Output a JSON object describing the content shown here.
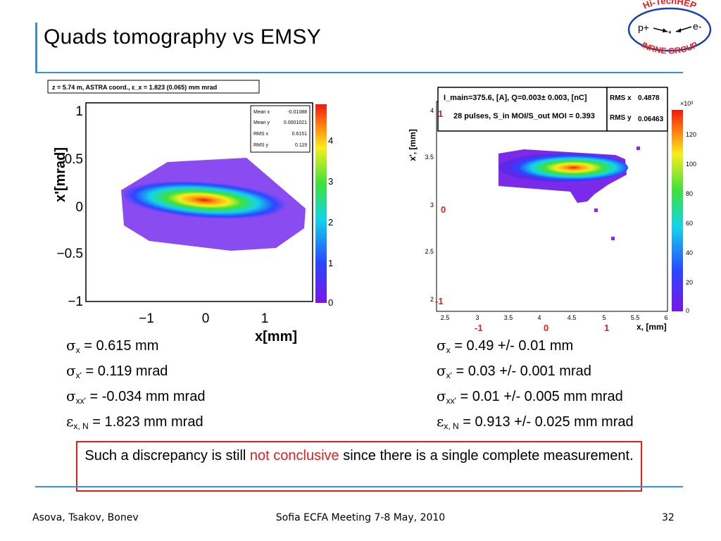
{
  "title": "Quads tomography vs EMSY",
  "logo": {
    "top_text": "Hi-TechHEP",
    "left": "p+",
    "right": "e-",
    "center": "*",
    "bottom_text": "INRNE GROUP"
  },
  "left_plot": {
    "header": "z = 5.74 m, ASTRA coord., ε_x = 1.823 (0.065) mm mrad",
    "stats": [
      {
        "label": "Mean x",
        "value": "-0.01088"
      },
      {
        "label": "Mean y",
        "value": "0.0001021"
      },
      {
        "label": "RMS x",
        "value": "0.6151"
      },
      {
        "label": "RMS y",
        "value": "0.119"
      }
    ],
    "ylabel": "x'[mrad]",
    "xlabel": "x[mm]",
    "yticks": [
      "1",
      "0.5",
      "0",
      "−0.5",
      "−1"
    ],
    "xticks": [
      "−1",
      "0",
      "1"
    ],
    "zticks": [
      "4",
      "3",
      "2",
      "1",
      "0"
    ]
  },
  "right_plot": {
    "header_line1": "I_main=375.6, [A], Q=0.003± 0.003, [nC]",
    "header_line2": "28 pulses, S_in MOI/S_out MOI = 0.393",
    "rms_x_label": "RMS x",
    "rms_x": "0.4878",
    "rms_y_label": "RMS y",
    "rms_y": "0.06463",
    "ylabel": "x', [mm]",
    "xlabel": "x, [mm]",
    "yticks": [
      "4",
      "3.5",
      "3",
      "2.5",
      "2"
    ],
    "xticks": [
      "2.5",
      "3",
      "3.5",
      "4",
      "4.5",
      "5",
      "5.5",
      "6"
    ],
    "zticks": [
      "120",
      "100",
      "80",
      "60",
      "40",
      "20",
      "0"
    ],
    "zscale": "×10³",
    "red_y": [
      "1",
      "0",
      "-1"
    ],
    "red_x": [
      "-1",
      "0",
      "1"
    ]
  },
  "left_stats": [
    {
      "sym": "σ",
      "sub": "x",
      "text": " = 0.615 mm"
    },
    {
      "sym": "σ",
      "sub": "x'",
      "text": " = 0.119 mrad"
    },
    {
      "sym": "σ",
      "sub": "xx'",
      "text": " = -0.034 mm mrad"
    },
    {
      "sym": "ε",
      "sub": "x, N",
      "text": " = 1.823 mm mrad"
    }
  ],
  "right_stats": [
    {
      "sym": "σ",
      "sub": "x",
      "text": " = 0.49 +/- 0.01 mm"
    },
    {
      "sym": "σ",
      "sub": "x'",
      "text": " = 0.03 +/- 0.001 mrad"
    },
    {
      "sym": "σ",
      "sub": "xx'",
      "text": " = 0.01 +/- 0.005 mm mrad"
    },
    {
      "sym": "ε",
      "sub": "x, N",
      "text": " = 0.913 +/- 0.025 mm mrad"
    }
  ],
  "note": {
    "before": "Such a discrepancy is still ",
    "highlight": "not conclusive",
    "after": " since there is a single complete measurement."
  },
  "footer": {
    "authors": "Asova, Tsakov, Bonev",
    "event": "Sofia ECFA Meeting 7-8 May, 2010",
    "page": "32"
  },
  "colors": {
    "accent": "#3b8fd8",
    "highlight": "#e0201e"
  }
}
